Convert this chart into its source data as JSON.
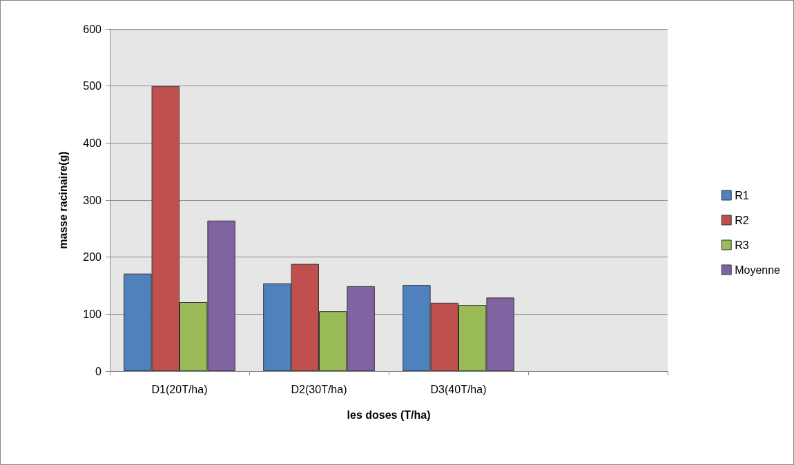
{
  "chart_data": {
    "type": "bar",
    "xlabel": "les doses (T/ha)",
    "ylabel": "masse racinaire(g)",
    "categories": [
      "D1(20T/ha)",
      "D2(30T/ha)",
      "D3(40T/ha)",
      null
    ],
    "series": [
      {
        "name": "R1",
        "color": "#4f81bd",
        "values": [
          171,
          154,
          151,
          null
        ]
      },
      {
        "name": "R2",
        "color": "#c0504d",
        "values": [
          500,
          188,
          120,
          null
        ]
      },
      {
        "name": "R3",
        "color": "#9bbb59",
        "values": [
          121,
          105,
          116,
          null
        ]
      },
      {
        "name": "Moyenne",
        "color": "#8064a2",
        "values": [
          264,
          149,
          129,
          null
        ]
      }
    ],
    "ylim": [
      0,
      600
    ],
    "yticks": [
      0,
      100,
      200,
      300,
      400,
      500,
      600
    ],
    "grid": "y",
    "legend": "right"
  }
}
